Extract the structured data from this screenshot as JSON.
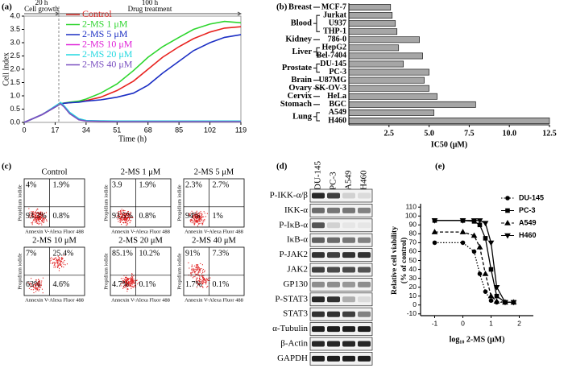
{
  "chart_data": [
    {
      "panel_label": "(a)",
      "type": "line",
      "xlabel": "Time (h)",
      "ylabel": "Cell index",
      "phases": [
        {
          "duration": "20 h",
          "label": "Cell growth"
        },
        {
          "duration": "100 h",
          "label": "Drug treatment"
        }
      ],
      "x": [
        0,
        5,
        10,
        15,
        20,
        22,
        25,
        30,
        34,
        42,
        51,
        60,
        68,
        76,
        85,
        93,
        102,
        110,
        119
      ],
      "xlim": [
        0,
        119
      ],
      "xticks": [
        0,
        17,
        34,
        51,
        68,
        85,
        102,
        119
      ],
      "ylim": [
        0,
        4.0
      ],
      "yticks": [
        {
          "value": 0,
          "label": "0.0"
        },
        0.5,
        {
          "value": 1,
          "label": "1.0"
        },
        1.5,
        {
          "value": 2,
          "label": "2.0"
        },
        2.5,
        {
          "value": 3,
          "label": "3.0"
        },
        3.5,
        {
          "value": 4,
          "label": "4.0"
        }
      ],
      "legend": "upper left",
      "series": [
        {
          "name": "Control",
          "color": "#e8231f",
          "values": [
            0,
            0.15,
            0.3,
            0.5,
            0.7,
            0.72,
            0.74,
            0.78,
            0.82,
            0.95,
            1.2,
            1.55,
            2.0,
            2.45,
            2.85,
            3.15,
            3.4,
            3.55,
            3.6
          ]
        },
        {
          "name": "2-MS 1 μM",
          "color": "#2ed62e",
          "values": [
            0,
            0.15,
            0.3,
            0.5,
            0.7,
            0.73,
            0.76,
            0.8,
            0.88,
            1.1,
            1.45,
            1.95,
            2.45,
            2.85,
            3.2,
            3.5,
            3.7,
            3.8,
            3.75
          ]
        },
        {
          "name": "2-MS 5 μM",
          "color": "#1c2fc4",
          "values": [
            0,
            0.15,
            0.3,
            0.5,
            0.7,
            0.72,
            0.74,
            0.76,
            0.8,
            0.85,
            0.95,
            1.1,
            1.4,
            1.85,
            2.3,
            2.7,
            3.0,
            3.2,
            3.3
          ]
        },
        {
          "name": "2-MS 10 μM",
          "color": "#e020d8",
          "values": [
            0,
            0.15,
            0.3,
            0.5,
            0.72,
            0.6,
            0.35,
            0.12,
            0.06,
            0.05,
            0.05,
            0.04,
            0.04,
            0.04,
            0.04,
            0.04,
            0.04,
            0.04,
            0.04
          ]
        },
        {
          "name": "2-MS 20 μM",
          "color": "#22d8e0",
          "values": [
            0,
            0.15,
            0.3,
            0.52,
            0.75,
            0.62,
            0.38,
            0.14,
            0.07,
            0.06,
            0.05,
            0.05,
            0.05,
            0.05,
            0.05,
            0.05,
            0.05,
            0.05,
            0.05
          ]
        },
        {
          "name": "2-MS 40 μM",
          "color": "#7a4fc0",
          "values": [
            0,
            0.15,
            0.3,
            0.5,
            0.7,
            0.58,
            0.33,
            0.1,
            0.05,
            0.04,
            0.03,
            0.03,
            0.03,
            0.03,
            0.03,
            0.03,
            0.03,
            0.03,
            0.03
          ]
        }
      ]
    },
    {
      "panel_label": "(b)",
      "type": "bar",
      "orientation": "horizontal",
      "xlabel": "IC50 (μM)",
      "color": "#a6a6a6",
      "xlim": [
        0,
        12.5
      ],
      "xticks": [
        2.5,
        {
          "value": 5,
          "label": "5.0"
        },
        7.5,
        {
          "value": 10,
          "label": "10.0"
        },
        12.5
      ],
      "groups": [
        {
          "name": "Breast",
          "categories": [
            "MCF-7"
          ],
          "values": [
            2.6
          ]
        },
        {
          "name": "Blood",
          "categories": [
            "Jurkat",
            "U937",
            "THP-1"
          ],
          "values": [
            2.7,
            2.9,
            3.0
          ]
        },
        {
          "name": "Kidney",
          "categories": [
            "786-0"
          ],
          "values": [
            4.4
          ]
        },
        {
          "name": "Liver",
          "categories": [
            "HepG2",
            "Bel-7404"
          ],
          "values": [
            3.1,
            4.6
          ]
        },
        {
          "name": "Prostate",
          "categories": [
            "DU-145",
            "PC-3"
          ],
          "values": [
            3.4,
            5.0
          ]
        },
        {
          "name": "Brain",
          "categories": [
            "U87MG"
          ],
          "values": [
            4.7
          ]
        },
        {
          "name": "Ovary",
          "categories": [
            "SK-OV-3"
          ],
          "values": [
            5.0
          ]
        },
        {
          "name": "Cervix",
          "categories": [
            "HeLa"
          ],
          "values": [
            5.5
          ]
        },
        {
          "name": "Stomach",
          "categories": [
            "BGC"
          ],
          "values": [
            7.9
          ]
        },
        {
          "name": "Lung",
          "categories": [
            "A549",
            "H460"
          ],
          "values": [
            5.3,
            12.5
          ]
        }
      ]
    },
    {
      "panel_label": "(e)",
      "type": "line",
      "markers": true,
      "xlabel": "log₁₀ 2-MS (μM)",
      "ylabel": [
        "Relative cell viability",
        "(% of control)"
      ],
      "x": [
        -1,
        0,
        0.4,
        0.6,
        0.8,
        1,
        1.2,
        1.5,
        1.8
      ],
      "xlim": [
        -1.5,
        2.5
      ],
      "xticks": [
        -1,
        0,
        1,
        2
      ],
      "ylim": [
        -12,
        112
      ],
      "yticks": [
        -10,
        0,
        10,
        20,
        30,
        40,
        50,
        60,
        70,
        80,
        90,
        100,
        110
      ],
      "legend": "upper right",
      "series": [
        {
          "name": "DU-145",
          "color": "#000000",
          "marker": "circle",
          "dash": "dotted",
          "values": [
            70,
            70,
            60,
            35,
            15,
            5,
            3,
            3,
            3
          ]
        },
        {
          "name": "PC-3",
          "color": "#000000",
          "marker": "square",
          "dash": "solid",
          "values": [
            95,
            95,
            94,
            90,
            75,
            40,
            10,
            3,
            3
          ]
        },
        {
          "name": "A549",
          "color": "#000000",
          "marker": "triangle",
          "dash": "dashed",
          "values": [
            82,
            82,
            78,
            65,
            35,
            10,
            4,
            3,
            3
          ]
        },
        {
          "name": "H460",
          "color": "#000000",
          "marker": "triangle-down",
          "dash": "solid",
          "values": [
            95,
            95,
            95,
            95,
            92,
            70,
            20,
            3,
            3
          ]
        }
      ]
    }
  ],
  "flow_cytometry": {
    "panel_label": "(c)",
    "xlabel": "Annexin V-Alexa Fluor 488",
    "ylabel": "Propidium iodide",
    "plots": [
      {
        "title": "Control",
        "quadrants": [
          "4%",
          "1.9%",
          "93.3%",
          "0.8%"
        ]
      },
      {
        "title": "2-MS 1 μM",
        "quadrants": [
          "3.9",
          "1.9%",
          "93.5%",
          "0.8%"
        ]
      },
      {
        "title": "2-MS 5 μM",
        "quadrants": [
          "2.3%",
          "2.7%",
          "94%",
          "1%"
        ]
      },
      {
        "title": "2-MS 10 μM",
        "quadrants": [
          "7%",
          "25.4%",
          "63%",
          "4.6%"
        ]
      },
      {
        "title": "2-MS 20 μM",
        "quadrants": [
          "85.1%",
          "10.2%",
          "4.7%",
          "0.1%"
        ]
      },
      {
        "title": "2-MS 40 μM",
        "quadrants": [
          "91%",
          "7.3%",
          "1.7%",
          "0.1%"
        ]
      }
    ]
  },
  "western_blot": {
    "panel_label": "(d)",
    "lanes": [
      "DU-145",
      "PC-3",
      "A549",
      "H460"
    ],
    "rows": [
      "P-IKK-α/β",
      "IKK-α",
      "P-IκB-α",
      "IκB-α",
      "P-JAK2",
      "JAK2",
      "GP130",
      "P-STAT3",
      "STAT3",
      "α-Tubulin",
      "β-Actin",
      "GAPDH"
    ]
  }
}
